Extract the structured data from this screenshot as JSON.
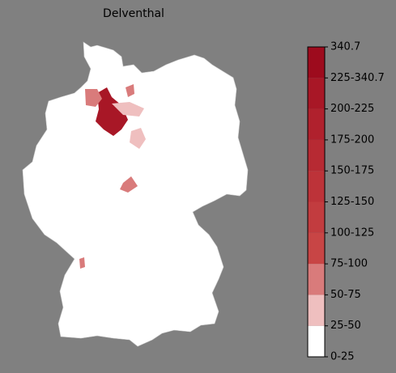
{
  "title": "Delventhal",
  "colorbar": {
    "ticks": [
      "0-25",
      "25-50",
      "50-75",
      "75-100",
      "100-125",
      "125-150",
      "150-175",
      "175-200",
      "200-225",
      "225-340.7",
      "340.7"
    ],
    "colors": [
      "#ffffff",
      "#efbfbf",
      "#d97b7b",
      "#c84545",
      "#c23c3f",
      "#bd3339",
      "#b72a33",
      "#b0212d",
      "#a81726",
      "#9d0b1d"
    ]
  }
}
